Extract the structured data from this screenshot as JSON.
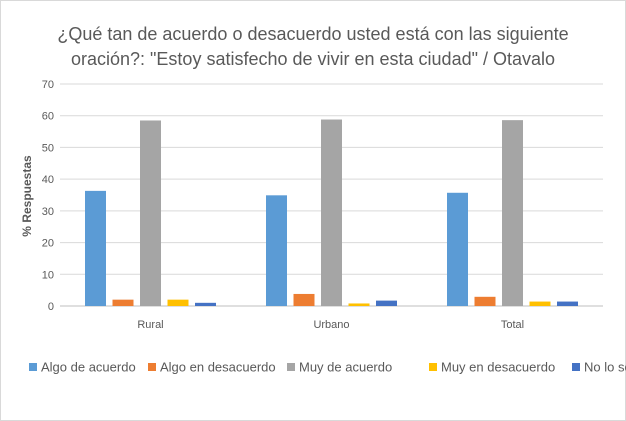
{
  "chart_data": {
    "type": "bar",
    "title_line1": "¿Qué tan de acuerdo o desacuerdo usted está con las siguiente",
    "title_line2": "oración?: \"Estoy satisfecho de vivir en esta ciudad\" / Otavalo",
    "ylabel": "% Respuestas",
    "xlabel": "",
    "ylim": [
      0,
      70
    ],
    "yticks": [
      "0",
      "10",
      "20",
      "30",
      "40",
      "50",
      "60",
      "70"
    ],
    "grid": true,
    "legend_position": "bottom",
    "categories": [
      "Rural",
      "Urbano",
      "Total"
    ],
    "series": [
      {
        "name": "Algo de acuerdo",
        "color": "#5b9bd5",
        "values": [
          36.3,
          34.9,
          35.7
        ]
      },
      {
        "name": "Algo en desacuerdo",
        "color": "#ed7d31",
        "values": [
          2.0,
          3.8,
          2.9
        ]
      },
      {
        "name": "Muy de acuerdo",
        "color": "#a5a5a5",
        "values": [
          58.5,
          58.8,
          58.6
        ]
      },
      {
        "name": "Muy en desacuerdo",
        "color": "#ffc000",
        "values": [
          2.0,
          0.8,
          1.4
        ]
      },
      {
        "name": "No lo sé",
        "color": "#4472c4",
        "values": [
          1.0,
          1.7,
          1.4
        ]
      }
    ]
  }
}
